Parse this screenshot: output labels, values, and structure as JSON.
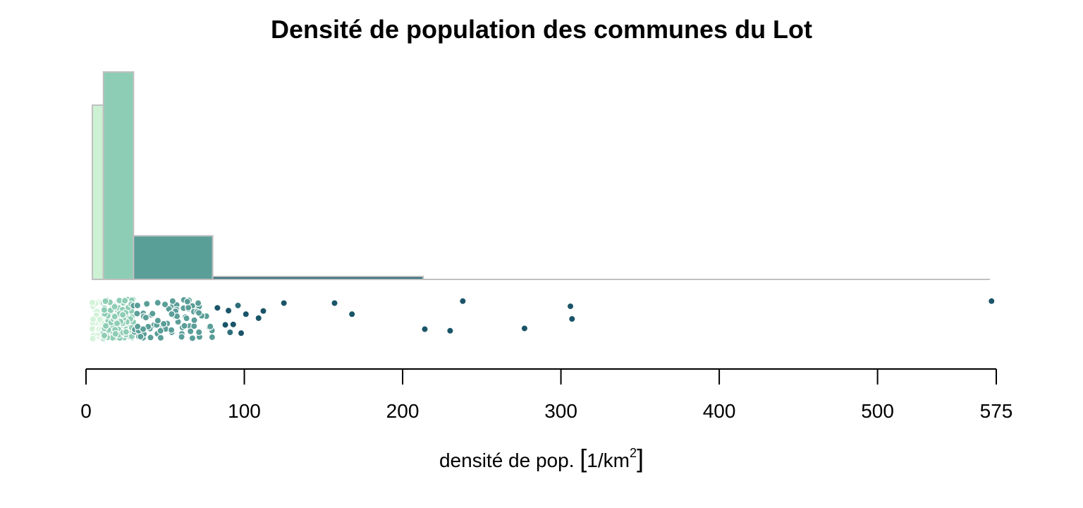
{
  "chart_data": {
    "type": "histogram",
    "title": "Densité de population des communes du Lot",
    "xlabel": {
      "prefix": "densité de pop.",
      "open_bracket": "[",
      "unit": "1/km",
      "exponent": "2",
      "close_bracket": "]"
    },
    "ylabel": "",
    "xlim": [
      0,
      575
    ],
    "x_ticks": [
      0,
      100,
      200,
      300,
      400,
      500,
      575
    ],
    "x_tick_labels": [
      "0",
      "100",
      "200",
      "300",
      "400",
      "500",
      "575"
    ],
    "grid": false,
    "legend": "none",
    "bins": [
      {
        "start": 4,
        "end": 11,
        "height": 0.84,
        "color": "#ccf1d3"
      },
      {
        "start": 11,
        "end": 30,
        "height": 1.0,
        "color": "#8ecdb5"
      },
      {
        "start": 30,
        "end": 80,
        "height": 0.21,
        "color": "#5a9e98"
      },
      {
        "start": 80,
        "end": 213,
        "height": 0.014,
        "color": "#2e6d7a"
      }
    ],
    "baseline_end": 571,
    "bar_stroke": "#c0c0c0",
    "points": {
      "sparse": [
        {
          "x": 83,
          "y": 0.78,
          "c": "#1a5468"
        },
        {
          "x": 88,
          "y": 0.35,
          "c": "#1a5468"
        },
        {
          "x": 90,
          "y": 0.71,
          "c": "#1a5468"
        },
        {
          "x": 91,
          "y": 0.16,
          "c": "#2e6d7a"
        },
        {
          "x": 93,
          "y": 0.36,
          "c": "#1a5468"
        },
        {
          "x": 96,
          "y": 0.84,
          "c": "#2e6d7a"
        },
        {
          "x": 98,
          "y": 0.14,
          "c": "#1a5468"
        },
        {
          "x": 101,
          "y": 0.62,
          "c": "#1a5468"
        },
        {
          "x": 109,
          "y": 0.52,
          "c": "#1a5468"
        },
        {
          "x": 112,
          "y": 0.7,
          "c": "#1a5468"
        },
        {
          "x": 125,
          "y": 0.9,
          "c": "#1a5468"
        },
        {
          "x": 157,
          "y": 0.9,
          "c": "#1a5468"
        },
        {
          "x": 168,
          "y": 0.62,
          "c": "#1a5468"
        },
        {
          "x": 214,
          "y": 0.24,
          "c": "#1a5468"
        },
        {
          "x": 230,
          "y": 0.2,
          "c": "#1a5468"
        },
        {
          "x": 238,
          "y": 0.95,
          "c": "#1a5468"
        },
        {
          "x": 277,
          "y": 0.26,
          "c": "#1a5468"
        },
        {
          "x": 306,
          "y": 0.82,
          "c": "#1a5468"
        },
        {
          "x": 307,
          "y": 0.5,
          "c": "#1a5468"
        },
        {
          "x": 572,
          "y": 0.95,
          "c": "#1a5468"
        }
      ],
      "dense_groups": [
        {
          "from": 4,
          "to": 11,
          "count": 60,
          "color": "#d4f3da"
        },
        {
          "from": 11,
          "to": 30,
          "count": 150,
          "color": "#8ecdb5"
        },
        {
          "from": 30,
          "to": 80,
          "count": 85,
          "color": "#5a9e98"
        }
      ]
    }
  }
}
